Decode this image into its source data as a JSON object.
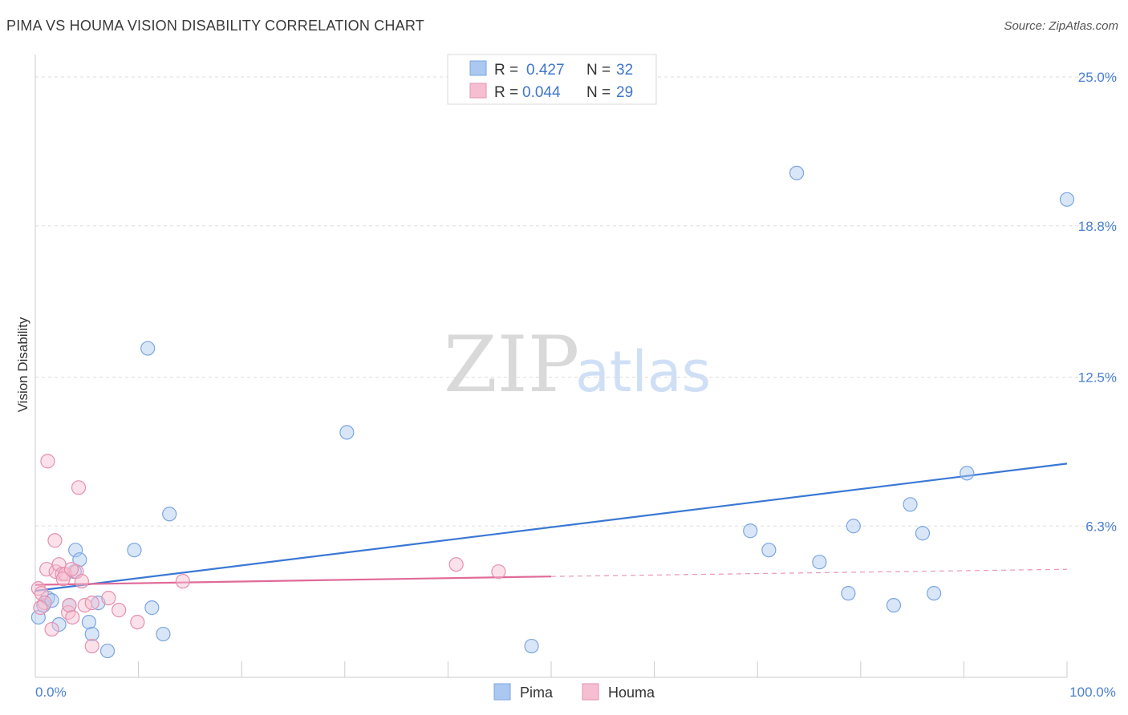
{
  "title": "PIMA VS HOUMA VISION DISABILITY CORRELATION CHART",
  "source": "Source: ZipAtlas.com",
  "watermark": {
    "part1": "ZIP",
    "part2": "atlas"
  },
  "legend_top": [
    {
      "r_label": "R = ",
      "r_value": "0.427",
      "n_label": "N = ",
      "n_value": "32",
      "color": "#aac8f0",
      "stroke": "#7aa6e0"
    },
    {
      "r_label": "R = ",
      "r_value": "0.044",
      "n_label": "N = ",
      "n_value": "29",
      "color": "#f6bfd1",
      "stroke": "#e58fae"
    }
  ],
  "chart_data": {
    "type": "scatter",
    "xlabel": "",
    "ylabel": "Vision Disability",
    "xlim": [
      0,
      100
    ],
    "ylim": [
      0,
      25.0
    ],
    "x_tick_labels": [
      {
        "value": 0,
        "label": "0.0%"
      },
      {
        "value": 100,
        "label": "100.0%"
      }
    ],
    "y_tick_labels": [
      {
        "value": 6.3,
        "label": "6.3%"
      },
      {
        "value": 12.5,
        "label": "12.5%"
      },
      {
        "value": 18.8,
        "label": "18.8%"
      },
      {
        "value": 25.0,
        "label": "25.0%"
      }
    ],
    "grid": "horizontal dashed",
    "legend_placement": "top-center and bottom-center",
    "series": [
      {
        "name": "Pima",
        "color": "#7aa6e0",
        "fill": "#aac8f0",
        "line_color": "#3a78d4",
        "trend": {
          "x": [
            0,
            100
          ],
          "y": [
            3.6,
            8.9
          ]
        },
        "points": [
          {
            "x": 0.3,
            "y": 2.5
          },
          {
            "x": 0.8,
            "y": 3.0
          },
          {
            "x": 1.2,
            "y": 3.3
          },
          {
            "x": 1.6,
            "y": 3.2
          },
          {
            "x": 2.3,
            "y": 2.2
          },
          {
            "x": 3.3,
            "y": 3.0
          },
          {
            "x": 3.9,
            "y": 5.3
          },
          {
            "x": 4.3,
            "y": 4.9
          },
          {
            "x": 5.2,
            "y": 2.3
          },
          {
            "x": 5.5,
            "y": 1.8
          },
          {
            "x": 6.1,
            "y": 3.1
          },
          {
            "x": 7.0,
            "y": 1.1
          },
          {
            "x": 9.6,
            "y": 5.3
          },
          {
            "x": 10.9,
            "y": 13.7
          },
          {
            "x": 11.3,
            "y": 2.9
          },
          {
            "x": 12.4,
            "y": 1.8
          },
          {
            "x": 13.0,
            "y": 6.8
          },
          {
            "x": 30.2,
            "y": 10.2
          },
          {
            "x": 48.1,
            "y": 1.3
          },
          {
            "x": 69.3,
            "y": 6.1
          },
          {
            "x": 71.1,
            "y": 5.3
          },
          {
            "x": 73.8,
            "y": 21.0
          },
          {
            "x": 76.0,
            "y": 4.8
          },
          {
            "x": 78.8,
            "y": 3.5
          },
          {
            "x": 79.3,
            "y": 6.3
          },
          {
            "x": 83.2,
            "y": 3.0
          },
          {
            "x": 84.8,
            "y": 7.2
          },
          {
            "x": 86.0,
            "y": 6.0
          },
          {
            "x": 87.1,
            "y": 3.5
          },
          {
            "x": 90.3,
            "y": 8.5
          },
          {
            "x": 100.0,
            "y": 19.9
          },
          {
            "x": 3.8,
            "y": 4.4
          }
        ]
      },
      {
        "name": "Houma",
        "color": "#e58fae",
        "fill": "#f6bfd1",
        "line_color": "#e06a98",
        "trend": {
          "x": [
            0,
            50
          ],
          "y": [
            3.85,
            4.2
          ]
        },
        "trend_dashed": {
          "x": [
            50,
            100
          ],
          "y": [
            4.2,
            4.5
          ]
        },
        "points": [
          {
            "x": 0.3,
            "y": 3.7
          },
          {
            "x": 0.6,
            "y": 3.5
          },
          {
            "x": 0.9,
            "y": 3.1
          },
          {
            "x": 1.1,
            "y": 4.5
          },
          {
            "x": 1.2,
            "y": 9.0
          },
          {
            "x": 1.6,
            "y": 2.0
          },
          {
            "x": 1.9,
            "y": 5.7
          },
          {
            "x": 2.0,
            "y": 4.4
          },
          {
            "x": 2.3,
            "y": 4.7
          },
          {
            "x": 2.6,
            "y": 4.3
          },
          {
            "x": 2.9,
            "y": 4.3
          },
          {
            "x": 3.2,
            "y": 2.7
          },
          {
            "x": 3.3,
            "y": 3.0
          },
          {
            "x": 3.6,
            "y": 2.5
          },
          {
            "x": 4.0,
            "y": 4.4
          },
          {
            "x": 4.2,
            "y": 7.9
          },
          {
            "x": 4.5,
            "y": 4.0
          },
          {
            "x": 4.8,
            "y": 3.0
          },
          {
            "x": 5.5,
            "y": 1.3
          },
          {
            "x": 5.5,
            "y": 3.1
          },
          {
            "x": 7.1,
            "y": 3.3
          },
          {
            "x": 8.1,
            "y": 2.8
          },
          {
            "x": 9.9,
            "y": 2.3
          },
          {
            "x": 14.3,
            "y": 4.0
          },
          {
            "x": 40.8,
            "y": 4.7
          },
          {
            "x": 44.9,
            "y": 4.4
          },
          {
            "x": 0.5,
            "y": 2.9
          },
          {
            "x": 2.7,
            "y": 4.1
          },
          {
            "x": 3.5,
            "y": 4.5
          }
        ]
      }
    ]
  },
  "legend_bottom": [
    {
      "label": "Pima",
      "fill": "#aac8f0",
      "stroke": "#7aa6e0"
    },
    {
      "label": "Houma",
      "fill": "#f6bfd1",
      "stroke": "#e58fae"
    }
  ]
}
